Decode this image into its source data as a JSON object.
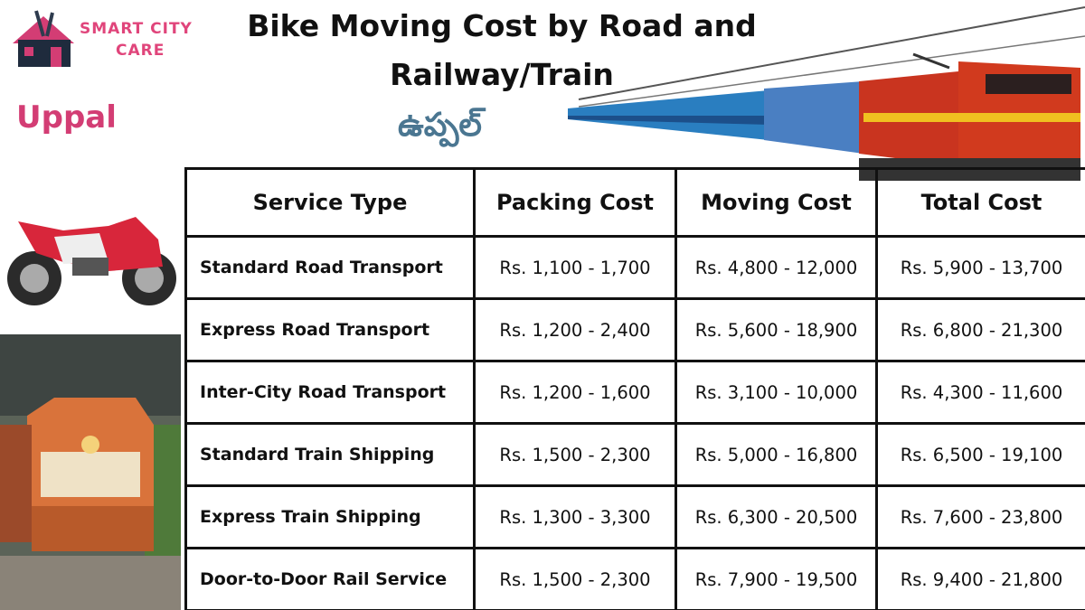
{
  "logo": {
    "line1": "SMART CITY",
    "line2": "CARE"
  },
  "header": {
    "title": "Bike Moving Cost by Road and Railway/Train",
    "location": "Uppal",
    "location_telugu": "ఉప్పల్"
  },
  "table": {
    "columns": [
      "Service Type",
      "Packing Cost",
      "Moving Cost",
      "Total Cost"
    ],
    "rows": [
      [
        "Standard Road Transport",
        "Rs. 1,100 - 1,700",
        "Rs. 4,800 - 12,000",
        "Rs. 5,900 - 13,700"
      ],
      [
        "Express Road Transport",
        "Rs. 1,200 - 2,400",
        "Rs. 5,600 - 18,900",
        "Rs. 6,800 - 21,300"
      ],
      [
        "Inter-City Road Transport",
        "Rs. 1,200 - 1,600",
        "Rs. 3,100 - 10,000",
        "Rs. 4,300 - 11,600"
      ],
      [
        "Standard Train Shipping",
        "Rs. 1,500 - 2,300",
        "Rs. 5,000 - 16,800",
        "Rs. 6,500 - 19,100"
      ],
      [
        "Express Train Shipping",
        "Rs. 1,300 - 3,300",
        "Rs. 6,300 - 20,500",
        "Rs. 7,600 - 23,800"
      ],
      [
        "Door-to-Door Rail Service",
        "Rs. 1,500 - 2,300",
        "Rs. 7,900 - 19,500",
        "Rs. 9,400 - 21,800"
      ]
    ]
  }
}
